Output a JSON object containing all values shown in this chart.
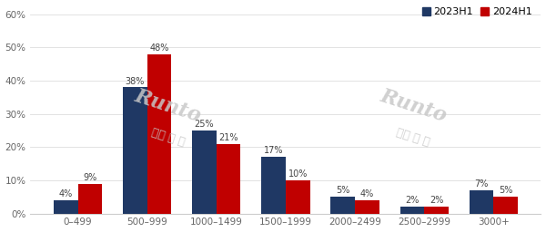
{
  "categories": [
    "0–499",
    "500–999",
    "1000–1499",
    "1500–1999",
    "2000–2499",
    "2500–2999",
    "3000+"
  ],
  "series_2023H1": [
    4,
    38,
    25,
    17,
    5,
    2,
    7
  ],
  "series_2024H1": [
    9,
    48,
    21,
    10,
    4,
    2,
    5
  ],
  "color_2023": "#1f3864",
  "color_2024": "#c00000",
  "legend_labels": [
    "2023H1",
    "2024H1"
  ],
  "ylim": [
    0,
    60
  ],
  "yticks": [
    0,
    10,
    20,
    30,
    40,
    50,
    60
  ],
  "ytick_labels": [
    "0%",
    "10%",
    "20%",
    "30%",
    "40%",
    "50%",
    "60%"
  ],
  "bar_width": 0.35,
  "background_color": "#ffffff",
  "watermark_text1": "Runto",
  "watermark_text2": "洛图 科 技",
  "label_fontsize": 7.0,
  "tick_fontsize": 7.5
}
